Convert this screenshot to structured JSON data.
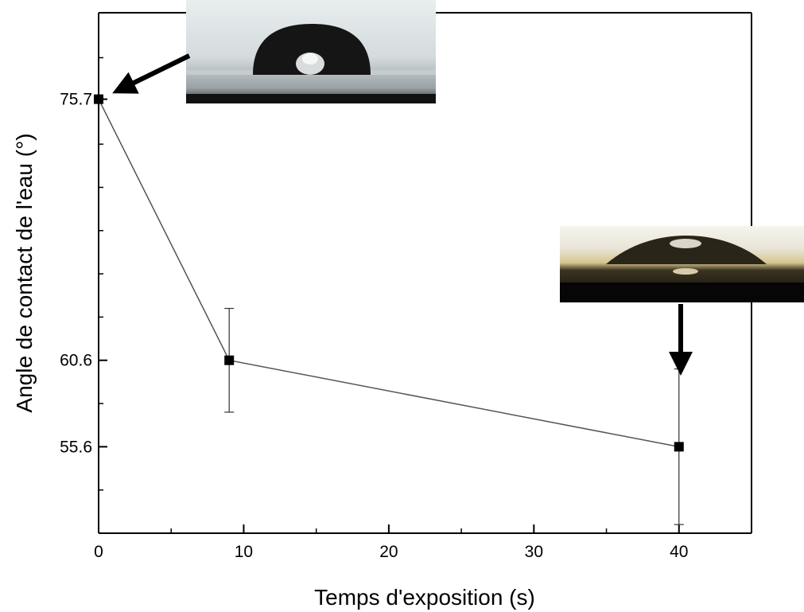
{
  "chart_data": {
    "type": "scatter",
    "title": "",
    "xlabel": "Temps d'exposition (s)",
    "ylabel": "Angle de contact de l'eau (°)",
    "xlim": [
      0,
      45
    ],
    "ylim": [
      50.6,
      80.7
    ],
    "x_ticks": [
      0,
      10,
      20,
      30,
      40
    ],
    "x_tick_labels": [
      "0",
      "10",
      "20",
      "30",
      "40"
    ],
    "y_ticks": [
      55.6,
      60.6,
      75.7
    ],
    "y_tick_labels": [
      "55.6",
      "60.6",
      "75.7"
    ],
    "grid": false,
    "legend": "none",
    "line_connected": true,
    "series": [
      {
        "points": [
          {
            "x": 0,
            "y": 75.7,
            "err": 0
          },
          {
            "x": 9,
            "y": 60.6,
            "err": 3
          },
          {
            "x": 40,
            "y": 55.6,
            "err": 4.5
          }
        ]
      }
    ],
    "insets": [
      {
        "name": "droplet-photo-high-angle",
        "points_to_x": 0,
        "points_to_y": 75.7
      },
      {
        "name": "droplet-photo-low-angle",
        "points_to_x": 40,
        "points_to_y": 55.6
      }
    ],
    "colors": {
      "line": "#555555",
      "marker": "#000000",
      "axis": "#000000"
    }
  }
}
